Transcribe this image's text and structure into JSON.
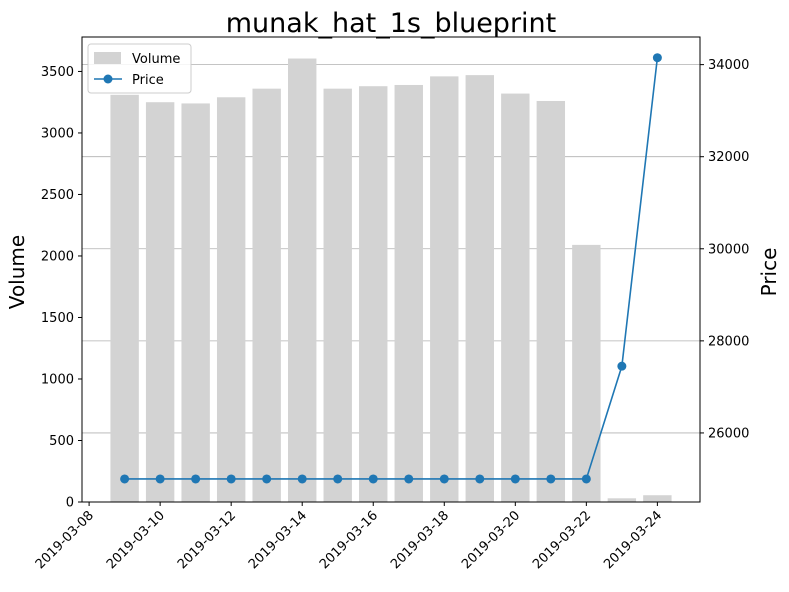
{
  "chart_data": {
    "type": "bar+line",
    "title": "munak_hat_1s_blueprint",
    "ylabel_left": "Volume",
    "ylabel_right": "Price",
    "dates": [
      "2019-03-09",
      "2019-03-10",
      "2019-03-11",
      "2019-03-12",
      "2019-03-13",
      "2019-03-14",
      "2019-03-15",
      "2019-03-16",
      "2019-03-17",
      "2019-03-18",
      "2019-03-19",
      "2019-03-20",
      "2019-03-21",
      "2019-03-22",
      "2019-03-23",
      "2019-03-24"
    ],
    "x_ticks": [
      "2019-03-08",
      "2019-03-10",
      "2019-03-12",
      "2019-03-14",
      "2019-03-16",
      "2019-03-18",
      "2019-03-20",
      "2019-03-22",
      "2019-03-24"
    ],
    "volume_ylim": [
      0,
      3780
    ],
    "volume_ticks": [
      0,
      500,
      1000,
      1500,
      2000,
      2500,
      3000,
      3500
    ],
    "price_ylim": [
      24500,
      34600
    ],
    "price_ticks": [
      26000,
      28000,
      30000,
      32000,
      34000
    ],
    "series": [
      {
        "name": "Volume",
        "kind": "bar",
        "color": "#d3d3d3",
        "values": [
          3310,
          3250,
          3240,
          3290,
          3360,
          3605,
          3360,
          3380,
          3390,
          3460,
          3470,
          3320,
          3260,
          2090,
          30,
          55
        ]
      },
      {
        "name": "Price",
        "kind": "line",
        "color": "#1f77b4",
        "axis": "right",
        "values": [
          25000,
          25000,
          25000,
          25000,
          25000,
          25000,
          25000,
          25000,
          25000,
          25000,
          25000,
          25000,
          25000,
          25000,
          27450,
          34150
        ]
      }
    ],
    "grid": "horizontal lines at right-axis ticks",
    "legend_position": "upper-left"
  }
}
